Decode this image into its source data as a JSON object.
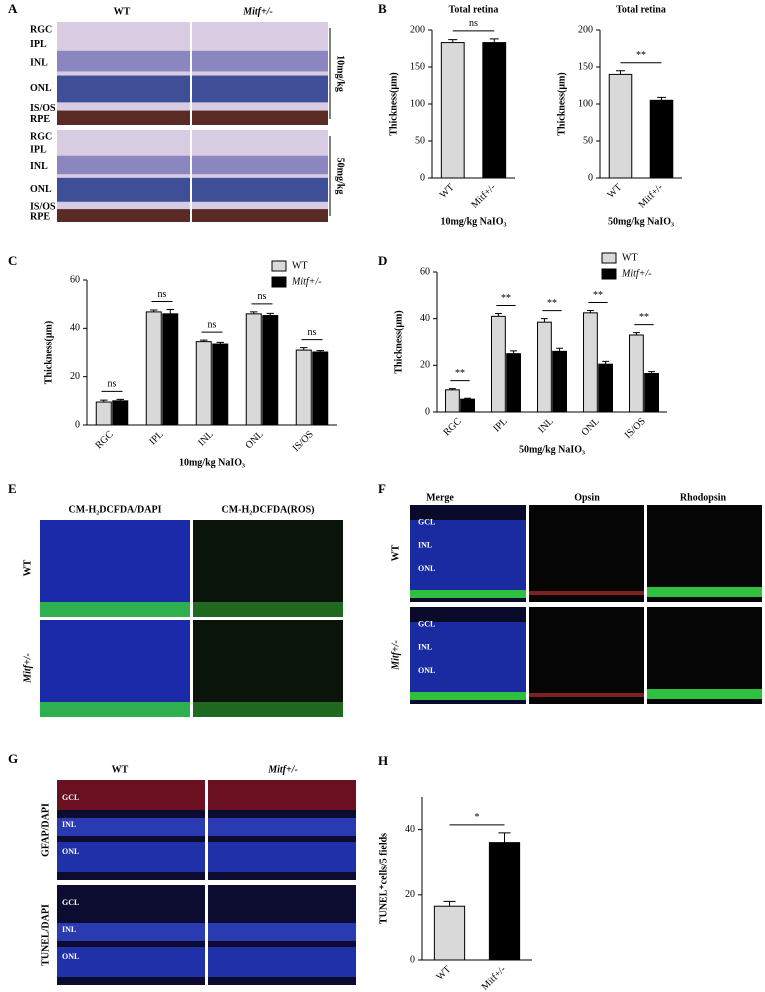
{
  "panels": {
    "A": {
      "letter": "A",
      "columns": [
        "WT",
        "Mitf+/-"
      ],
      "layers_top": [
        "RGC",
        "IPL",
        "INL",
        "ONL",
        "IS/OS",
        "RPE"
      ],
      "layers_bottom": [
        "RGC",
        "IPL",
        "INL",
        "ONL",
        "IS/OS",
        "RPE"
      ],
      "doses": [
        "10mg/kg",
        "50mg/kg"
      ]
    },
    "E": {
      "letter": "E",
      "columns": [
        "CM-H₂DCFDA/DAPI",
        "CM-H₂DCFDA(ROS)"
      ],
      "rows": [
        "WT",
        "Mitf+/-"
      ]
    },
    "F": {
      "letter": "F",
      "columns": [
        "Merge",
        "Opsin",
        "Rhodopsin"
      ],
      "rows": [
        "WT",
        "Mitf+/-"
      ],
      "layers_top": [
        "GCL",
        "INL",
        "ONL"
      ],
      "layers_bottom": [
        "GCL",
        "INL",
        "ONL"
      ]
    },
    "G": {
      "letter": "G",
      "columns": [
        "WT",
        "Mitf+/-"
      ],
      "rows": [
        "GFAP/DAPI",
        "TUNEL/DAPI"
      ],
      "layers_top": [
        "GCL",
        "INL",
        "ONL"
      ],
      "layers_bottom": [
        "GCL",
        "INL",
        "ONL"
      ]
    }
  },
  "chart_data": [
    {
      "type": "bar",
      "letter": "B",
      "title": "Total retina",
      "categories": [
        "WT",
        "Mitf+/-"
      ],
      "values": [
        183,
        183
      ],
      "errors": [
        4,
        5
      ],
      "colors": [
        "#d9d9d9",
        "#000000"
      ],
      "ylim": [
        0,
        200
      ],
      "yticks": [
        0,
        50,
        100,
        150,
        200
      ],
      "ylabel": "Thickness(μm)",
      "xlabel": "10mg/kg  NaIO₃",
      "annotations": [
        "ns"
      ]
    },
    {
      "type": "bar",
      "title": "Total retina",
      "categories": [
        "WT",
        "Mitf+/-"
      ],
      "values": [
        140,
        105
      ],
      "errors": [
        5,
        4
      ],
      "colors": [
        "#d9d9d9",
        "#000000"
      ],
      "ylim": [
        0,
        200
      ],
      "yticks": [
        0,
        50,
        100,
        150,
        200
      ],
      "ylabel": "Thickness(μm)",
      "xlabel": "50mg/kg  NaIO₃",
      "annotations": [
        "**"
      ]
    },
    {
      "type": "grouped-bar",
      "letter": "C",
      "categories": [
        "RGC",
        "IPL",
        "INL",
        "ONL",
        "IS/OS"
      ],
      "series": [
        {
          "name": "WT",
          "color": "#d9d9d9",
          "values": [
            9.5,
            46.8,
            34.5,
            46,
            31
          ],
          "errors": [
            0.8,
            0.8,
            0.6,
            0.8,
            1
          ]
        },
        {
          "name": "Mitf+/-",
          "color": "#000000",
          "values": [
            10,
            46,
            33.5,
            45.3,
            30.2
          ],
          "errors": [
            0.6,
            1.8,
            0.7,
            0.9,
            0.6
          ]
        }
      ],
      "ylim": [
        0,
        60
      ],
      "yticks": [
        0,
        20,
        40,
        60
      ],
      "ylabel": "Thickness(μm)",
      "xlabel": "10mg/kg  NaIO₃",
      "annotations": [
        "ns",
        "ns",
        "ns",
        "ns",
        "ns"
      ],
      "legend": "upper right"
    },
    {
      "type": "grouped-bar",
      "letter": "D",
      "categories": [
        "RGC",
        "IPL",
        "INL",
        "ONL",
        "IS/OS"
      ],
      "series": [
        {
          "name": "WT",
          "color": "#d9d9d9",
          "values": [
            9.5,
            41,
            38.5,
            42.5,
            33
          ],
          "errors": [
            0.5,
            1.2,
            1.5,
            1,
            1
          ]
        },
        {
          "name": "Mitf+/-",
          "color": "#000000",
          "values": [
            5.5,
            25,
            26,
            20.5,
            16.5
          ],
          "errors": [
            0.4,
            1.2,
            1.3,
            1.2,
            0.8
          ]
        }
      ],
      "ylim": [
        0,
        60
      ],
      "yticks": [
        0,
        20,
        40,
        60
      ],
      "ylabel": "Thickness(μm)",
      "xlabel": "50mg/kg  NaIO₃",
      "annotations": [
        "**",
        "**",
        "**",
        "**",
        "**"
      ],
      "legend": "upper right"
    },
    {
      "type": "bar",
      "letter": "H",
      "categories": [
        "WT",
        "Mitf+/-"
      ],
      "values": [
        16.5,
        36
      ],
      "errors": [
        1.5,
        3
      ],
      "colors": [
        "#d9d9d9",
        "#000000"
      ],
      "ylim": [
        0,
        50
      ],
      "yticks": [
        0,
        20,
        40
      ],
      "ylabel": "TUNEL⁺cells/5 fields",
      "annotations": [
        "*"
      ]
    }
  ]
}
